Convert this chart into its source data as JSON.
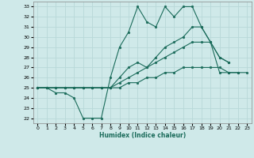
{
  "xlabel": "Humidex (Indice chaleur)",
  "bg_color": "#cfe9e9",
  "grid_color": "#b8d8d8",
  "line_color": "#1a6b5a",
  "xlim": [
    -0.5,
    23.5
  ],
  "ylim": [
    21.5,
    33.5
  ],
  "xticks": [
    0,
    1,
    2,
    3,
    4,
    5,
    6,
    7,
    8,
    9,
    10,
    11,
    12,
    13,
    14,
    15,
    16,
    17,
    18,
    19,
    20,
    21,
    22,
    23
  ],
  "yticks": [
    22,
    23,
    24,
    25,
    26,
    27,
    28,
    29,
    30,
    31,
    32,
    33
  ],
  "line1_y": [
    25,
    25,
    24.5,
    24.5,
    24,
    22,
    22,
    22,
    26,
    29,
    30.5,
    33,
    31.5,
    31,
    33,
    32,
    33,
    33,
    31,
    29.5,
    28,
    27.5,
    null,
    null
  ],
  "line2_y": [
    25,
    25,
    25,
    25,
    25,
    25,
    25,
    25,
    25,
    26,
    27,
    27.5,
    27,
    28,
    29,
    29.5,
    30,
    31,
    31,
    29.5,
    28,
    27.5,
    null,
    null
  ],
  "line3_y": [
    25,
    25,
    25,
    25,
    25,
    25,
    25,
    25,
    25,
    25.5,
    26,
    26.5,
    27,
    27.5,
    28,
    28.5,
    29,
    29.5,
    29.5,
    29.5,
    26.5,
    26.5,
    26.5,
    null
  ],
  "line4_y": [
    25,
    25,
    25,
    25,
    25,
    25,
    25,
    25,
    25,
    25,
    25.5,
    25.5,
    26,
    26,
    26.5,
    26.5,
    27,
    27,
    27,
    27,
    27,
    26.5,
    26.5,
    26.5
  ]
}
